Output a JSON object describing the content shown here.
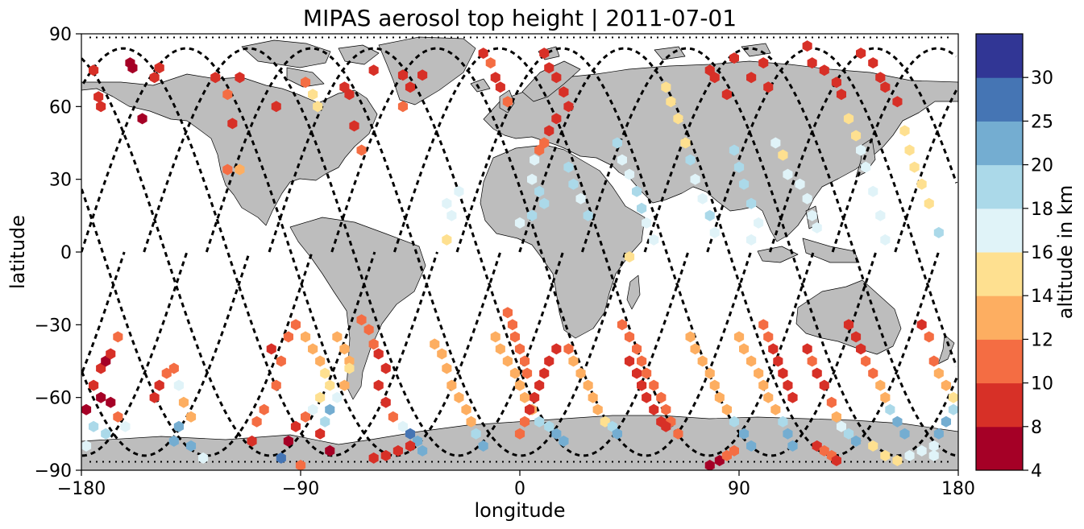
{
  "chart_data": {
    "type": "scatter",
    "title": "MIPAS aerosol top height | 2011-07-01",
    "xlabel": "longitude",
    "ylabel": "latitude",
    "xlim": [
      -180,
      180
    ],
    "ylim": [
      -90,
      90
    ],
    "xticks": [
      -180,
      -90,
      0,
      90,
      180
    ],
    "xtick_labels": [
      "−180",
      "−90",
      "0",
      "90",
      "180"
    ],
    "yticks": [
      -90,
      -60,
      -30,
      0,
      30,
      60,
      90
    ],
    "ytick_labels": [
      "−90",
      "−60",
      "−30",
      "0",
      "30",
      "60",
      "90"
    ],
    "grid": false,
    "colorbar": {
      "label": "altitude in km",
      "boundaries": [
        4,
        8,
        10,
        12,
        14,
        16,
        18,
        20,
        25,
        30
      ],
      "tick_labels": [
        "4",
        "8",
        "10",
        "12",
        "14",
        "16",
        "18",
        "20",
        "25",
        "30"
      ],
      "colors": [
        "#a50026",
        "#d73027",
        "#f46d43",
        "#fdae61",
        "#fee090",
        "#e0f3f8",
        "#abd9e9",
        "#74add1",
        "#4575b4",
        "#313695"
      ]
    },
    "map_colors": {
      "land": "#bdbdbd",
      "coast": "#000000",
      "ocean": "#ffffff"
    },
    "tracks_style": "dashed black satellite ground tracks",
    "points": [
      [
        -175,
        75,
        9
      ],
      [
        -173,
        64,
        9
      ],
      [
        -172,
        60,
        9
      ],
      [
        -160,
        78,
        6
      ],
      [
        -159,
        76,
        6
      ],
      [
        -155,
        55,
        6
      ],
      [
        -150,
        72,
        9
      ],
      [
        -148,
        76,
        9
      ],
      [
        -125,
        72,
        9
      ],
      [
        -120,
        65,
        11
      ],
      [
        -118,
        53,
        9
      ],
      [
        -115,
        72,
        9
      ],
      [
        -120,
        34,
        11
      ],
      [
        -115,
        34,
        13
      ],
      [
        -100,
        60,
        9
      ],
      [
        -88,
        70,
        11
      ],
      [
        -85,
        65,
        14
      ],
      [
        -83,
        60,
        14
      ],
      [
        -72,
        68,
        9
      ],
      [
        -70,
        65,
        9
      ],
      [
        -68,
        52,
        9
      ],
      [
        -65,
        42,
        11
      ],
      [
        -60,
        75,
        9
      ],
      [
        -48,
        73,
        9
      ],
      [
        -45,
        68,
        9
      ],
      [
        -40,
        73,
        9
      ],
      [
        -48,
        60,
        11
      ],
      [
        -15,
        82,
        9
      ],
      [
        -12,
        78,
        11
      ],
      [
        -10,
        72,
        9
      ],
      [
        -8,
        68,
        9
      ],
      [
        -5,
        62,
        11
      ],
      [
        10,
        82,
        9
      ],
      [
        12,
        76,
        9
      ],
      [
        15,
        72,
        9
      ],
      [
        18,
        66,
        9
      ],
      [
        20,
        60,
        9
      ],
      [
        15,
        55,
        9
      ],
      [
        12,
        50,
        9
      ],
      [
        10,
        45,
        11
      ],
      [
        8,
        42,
        11
      ],
      [
        6,
        38,
        17
      ],
      [
        -30,
        20,
        17
      ],
      [
        -28,
        15,
        17
      ],
      [
        -30,
        5,
        15
      ],
      [
        -25,
        25,
        17
      ],
      [
        5,
        30,
        17
      ],
      [
        8,
        25,
        19
      ],
      [
        10,
        20,
        19
      ],
      [
        5,
        15,
        19
      ],
      [
        0,
        12,
        17
      ],
      [
        20,
        35,
        19
      ],
      [
        22,
        28,
        19
      ],
      [
        25,
        22,
        17
      ],
      [
        28,
        15,
        19
      ],
      [
        40,
        45,
        19
      ],
      [
        42,
        38,
        17
      ],
      [
        45,
        32,
        17
      ],
      [
        48,
        25,
        19
      ],
      [
        50,
        18,
        19
      ],
      [
        52,
        12,
        17
      ],
      [
        55,
        5,
        17
      ],
      [
        45,
        -2,
        15
      ],
      [
        60,
        68,
        15
      ],
      [
        62,
        62,
        15
      ],
      [
        65,
        55,
        15
      ],
      [
        68,
        45,
        15
      ],
      [
        70,
        38,
        19
      ],
      [
        72,
        30,
        17
      ],
      [
        75,
        22,
        17
      ],
      [
        78,
        15,
        19
      ],
      [
        80,
        8,
        17
      ],
      [
        88,
        42,
        19
      ],
      [
        90,
        35,
        19
      ],
      [
        92,
        28,
        19
      ],
      [
        95,
        20,
        19
      ],
      [
        98,
        12,
        17
      ],
      [
        95,
        5,
        17
      ],
      [
        105,
        45,
        17
      ],
      [
        108,
        40,
        15
      ],
      [
        110,
        32,
        17
      ],
      [
        115,
        28,
        17
      ],
      [
        118,
        22,
        17
      ],
      [
        120,
        15,
        17
      ],
      [
        122,
        10,
        17
      ],
      [
        135,
        55,
        15
      ],
      [
        138,
        48,
        15
      ],
      [
        140,
        42,
        17
      ],
      [
        142,
        35,
        17
      ],
      [
        145,
        25,
        17
      ],
      [
        148,
        15,
        17
      ],
      [
        150,
        5,
        17
      ],
      [
        158,
        50,
        15
      ],
      [
        160,
        42,
        15
      ],
      [
        162,
        35,
        15
      ],
      [
        165,
        28,
        15
      ],
      [
        168,
        20,
        15
      ],
      [
        172,
        8,
        19
      ],
      [
        118,
        85,
        9
      ],
      [
        120,
        78,
        9
      ],
      [
        125,
        75,
        9
      ],
      [
        130,
        70,
        9
      ],
      [
        132,
        65,
        9
      ],
      [
        140,
        82,
        9
      ],
      [
        145,
        78,
        9
      ],
      [
        148,
        72,
        9
      ],
      [
        150,
        68,
        9
      ],
      [
        155,
        62,
        9
      ],
      [
        78,
        75,
        9
      ],
      [
        80,
        72,
        9
      ],
      [
        85,
        65,
        9
      ],
      [
        88,
        80,
        9
      ],
      [
        95,
        72,
        9
      ],
      [
        100,
        78,
        9
      ],
      [
        102,
        68,
        9
      ],
      [
        -178,
        -65,
        6
      ],
      [
        -175,
        -55,
        9
      ],
      [
        -172,
        -48,
        9
      ],
      [
        -170,
        -45,
        6
      ],
      [
        -168,
        -42,
        9
      ],
      [
        -165,
        -35,
        11
      ],
      [
        -172,
        -60,
        6
      ],
      [
        -168,
        -62,
        6
      ],
      [
        -165,
        -68,
        11
      ],
      [
        -162,
        -72,
        17
      ],
      [
        -170,
        -75,
        19
      ],
      [
        -175,
        -72,
        19
      ],
      [
        -178,
        -80,
        17
      ],
      [
        -150,
        -60,
        9
      ],
      [
        -148,
        -55,
        9
      ],
      [
        -145,
        -50,
        11
      ],
      [
        -142,
        -48,
        11
      ],
      [
        -140,
        -55,
        17
      ],
      [
        -138,
        -62,
        13
      ],
      [
        -135,
        -68,
        13
      ],
      [
        -140,
        -72,
        20
      ],
      [
        -142,
        -78,
        20
      ],
      [
        -135,
        -80,
        20
      ],
      [
        -130,
        -85,
        17
      ],
      [
        -110,
        -78,
        9
      ],
      [
        -108,
        -70,
        11
      ],
      [
        -105,
        -65,
        11
      ],
      [
        -100,
        -55,
        11
      ],
      [
        -98,
        -45,
        11
      ],
      [
        -102,
        -40,
        9
      ],
      [
        -95,
        -35,
        11
      ],
      [
        -92,
        -30,
        11
      ],
      [
        -88,
        -35,
        13
      ],
      [
        -85,
        -40,
        13
      ],
      [
        -82,
        -45,
        13
      ],
      [
        -80,
        -50,
        15
      ],
      [
        -78,
        -55,
        15
      ],
      [
        -82,
        -60,
        15
      ],
      [
        -85,
        -65,
        17
      ],
      [
        -88,
        -68,
        11
      ],
      [
        -92,
        -72,
        9
      ],
      [
        -95,
        -78,
        6
      ],
      [
        -98,
        -85,
        27
      ],
      [
        -90,
        -88,
        11
      ],
      [
        -75,
        -35,
        13
      ],
      [
        -72,
        -40,
        13
      ],
      [
        -70,
        -45,
        13
      ],
      [
        -70,
        -48,
        15
      ],
      [
        -72,
        -55,
        13
      ],
      [
        -75,
        -60,
        17
      ],
      [
        -78,
        -65,
        21
      ],
      [
        -80,
        -70,
        19
      ],
      [
        -82,
        -75,
        9
      ],
      [
        -78,
        -82,
        6
      ],
      [
        -65,
        -28,
        11
      ],
      [
        -62,
        -32,
        11
      ],
      [
        -60,
        -38,
        11
      ],
      [
        -58,
        -42,
        9
      ],
      [
        -55,
        -48,
        9
      ],
      [
        -58,
        -55,
        9
      ],
      [
        -55,
        -62,
        9
      ],
      [
        -52,
        -68,
        11
      ],
      [
        -48,
        -72,
        17
      ],
      [
        -45,
        -75,
        27
      ],
      [
        -42,
        -78,
        21
      ],
      [
        -40,
        -82,
        21
      ],
      [
        -35,
        -38,
        13
      ],
      [
        -32,
        -42,
        13
      ],
      [
        -30,
        -48,
        13
      ],
      [
        -28,
        -55,
        13
      ],
      [
        -25,
        -60,
        13
      ],
      [
        -22,
        -65,
        13
      ],
      [
        -20,
        -70,
        13
      ],
      [
        -18,
        -75,
        19
      ],
      [
        -15,
        -80,
        21
      ],
      [
        -10,
        -35,
        13
      ],
      [
        -8,
        -40,
        13
      ],
      [
        -5,
        -45,
        13
      ],
      [
        -2,
        -50,
        13
      ],
      [
        0,
        -55,
        13
      ],
      [
        2,
        -60,
        13
      ],
      [
        5,
        -65,
        13
      ],
      [
        8,
        -70,
        19
      ],
      [
        12,
        -72,
        19
      ],
      [
        15,
        -75,
        21
      ],
      [
        18,
        -78,
        21
      ],
      [
        -5,
        -25,
        11
      ],
      [
        -3,
        -30,
        11
      ],
      [
        -2,
        -35,
        11
      ],
      [
        0,
        -40,
        11
      ],
      [
        2,
        -45,
        11
      ],
      [
        3,
        -50,
        11
      ],
      [
        20,
        -40,
        11
      ],
      [
        22,
        -45,
        13
      ],
      [
        25,
        -50,
        13
      ],
      [
        28,
        -55,
        13
      ],
      [
        30,
        -60,
        13
      ],
      [
        32,
        -65,
        13
      ],
      [
        35,
        -70,
        15
      ],
      [
        38,
        -72,
        19
      ],
      [
        40,
        -75,
        21
      ],
      [
        15,
        -40,
        9
      ],
      [
        12,
        -45,
        9
      ],
      [
        10,
        -50,
        9
      ],
      [
        8,
        -55,
        9
      ],
      [
        6,
        -60,
        9
      ],
      [
        4,
        -65,
        9
      ],
      [
        2,
        -70,
        11
      ],
      [
        0,
        -75,
        11
      ],
      [
        42,
        -30,
        11
      ],
      [
        45,
        -35,
        11
      ],
      [
        48,
        -40,
        11
      ],
      [
        50,
        -45,
        11
      ],
      [
        52,
        -50,
        11
      ],
      [
        55,
        -55,
        11
      ],
      [
        58,
        -60,
        11
      ],
      [
        60,
        -65,
        11
      ],
      [
        62,
        -70,
        11
      ],
      [
        65,
        -75,
        11
      ],
      [
        45,
        -45,
        9
      ],
      [
        48,
        -50,
        9
      ],
      [
        50,
        -55,
        9
      ],
      [
        52,
        -60,
        9
      ],
      [
        55,
        -65,
        9
      ],
      [
        58,
        -70,
        9
      ],
      [
        60,
        -72,
        9
      ],
      [
        70,
        -35,
        13
      ],
      [
        72,
        -40,
        13
      ],
      [
        75,
        -45,
        13
      ],
      [
        78,
        -50,
        13
      ],
      [
        80,
        -55,
        13
      ],
      [
        82,
        -60,
        13
      ],
      [
        85,
        -65,
        13
      ],
      [
        88,
        -70,
        19
      ],
      [
        92,
        -75,
        21
      ],
      [
        95,
        -80,
        21
      ],
      [
        90,
        -35,
        13
      ],
      [
        92,
        -40,
        13
      ],
      [
        95,
        -45,
        13
      ],
      [
        98,
        -50,
        13
      ],
      [
        100,
        -55,
        13
      ],
      [
        102,
        -60,
        13
      ],
      [
        105,
        -65,
        13
      ],
      [
        108,
        -70,
        19
      ],
      [
        110,
        -75,
        21
      ],
      [
        112,
        -80,
        21
      ],
      [
        100,
        -30,
        11
      ],
      [
        102,
        -35,
        11
      ],
      [
        104,
        -40,
        9
      ],
      [
        106,
        -45,
        9
      ],
      [
        108,
        -50,
        9
      ],
      [
        110,
        -55,
        9
      ],
      [
        112,
        -60,
        9
      ],
      [
        118,
        -40,
        9
      ],
      [
        120,
        -45,
        11
      ],
      [
        122,
        -50,
        9
      ],
      [
        125,
        -55,
        9
      ],
      [
        128,
        -62,
        11
      ],
      [
        130,
        -68,
        13
      ],
      [
        132,
        -72,
        17
      ],
      [
        135,
        -75,
        19
      ],
      [
        138,
        -78,
        21
      ],
      [
        135,
        -30,
        9
      ],
      [
        138,
        -35,
        9
      ],
      [
        140,
        -40,
        9
      ],
      [
        142,
        -45,
        11
      ],
      [
        145,
        -50,
        11
      ],
      [
        148,
        -55,
        13
      ],
      [
        150,
        -60,
        13
      ],
      [
        152,
        -65,
        19
      ],
      [
        155,
        -70,
        21
      ],
      [
        158,
        -75,
        21
      ],
      [
        165,
        -30,
        9
      ],
      [
        168,
        -35,
        11
      ],
      [
        170,
        -45,
        11
      ],
      [
        172,
        -50,
        13
      ],
      [
        175,
        -55,
        13
      ],
      [
        178,
        -60,
        15
      ],
      [
        178,
        -65,
        19
      ],
      [
        175,
        -70,
        21
      ],
      [
        172,
        -75,
        21
      ],
      [
        170,
        -80,
        17
      ],
      [
        145,
        -80,
        15
      ],
      [
        150,
        -84,
        15
      ],
      [
        155,
        -86,
        15
      ],
      [
        160,
        -84,
        17
      ],
      [
        165,
        -82,
        17
      ],
      [
        170,
        -84,
        17
      ],
      [
        122,
        -80,
        9
      ],
      [
        125,
        -82,
        11
      ],
      [
        128,
        -84,
        11
      ],
      [
        130,
        -86,
        9
      ],
      [
        78,
        -88,
        6
      ],
      [
        82,
        -86,
        6
      ],
      [
        85,
        -84,
        11
      ],
      [
        88,
        -82,
        11
      ],
      [
        -60,
        -85,
        9
      ],
      [
        -55,
        -84,
        9
      ],
      [
        -50,
        -82,
        9
      ],
      [
        -45,
        -80,
        9
      ]
    ]
  }
}
